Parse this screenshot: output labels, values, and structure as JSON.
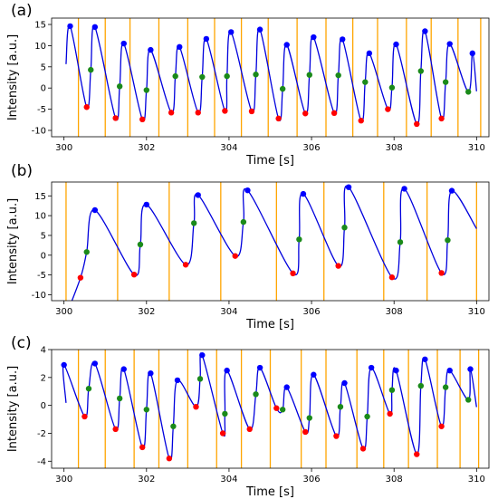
{
  "colors": {
    "signal": "#0000dd",
    "vertical_lines": "#ffa500",
    "peak_marker": "#0000ff",
    "mid_marker": "#1a8a1a",
    "trough_marker": "#ff0000"
  },
  "chart_data": [
    {
      "panel_label": "(a)",
      "type": "line",
      "xlabel": "Time [s]",
      "ylabel": "Intensity [a.u.]",
      "xlim": [
        299.7,
        310.3
      ],
      "ylim": [
        -11.5,
        16.5
      ],
      "x_ticks": [
        300,
        302,
        304,
        306,
        308,
        310
      ],
      "y_ticks": [
        -10,
        -5,
        0,
        5,
        10,
        15
      ],
      "x_tick_labels": [
        "300",
        "302",
        "304",
        "306",
        "308",
        "310"
      ],
      "y_tick_labels": [
        "-10",
        "-5",
        "0",
        "5",
        "10",
        "15"
      ],
      "vertical_lines_x": [
        300.35,
        301.0,
        301.6,
        302.3,
        303.0,
        303.65,
        304.3,
        304.95,
        305.65,
        306.35,
        307.0,
        307.6,
        308.3,
        308.9,
        309.55,
        310.1
      ],
      "peak_points": [
        [
          300.15,
          14.6
        ],
        [
          300.75,
          14.4
        ],
        [
          301.45,
          10.5
        ],
        [
          302.1,
          9.0
        ],
        [
          302.8,
          9.7
        ],
        [
          303.45,
          11.6
        ],
        [
          304.05,
          13.2
        ],
        [
          304.75,
          13.8
        ],
        [
          305.4,
          10.2
        ],
        [
          306.05,
          12.0
        ],
        [
          306.75,
          11.5
        ],
        [
          307.4,
          8.2
        ],
        [
          308.05,
          10.3
        ],
        [
          308.75,
          13.4
        ],
        [
          309.35,
          10.4
        ],
        [
          309.9,
          8.2
        ]
      ],
      "mid_points": [
        [
          300.65,
          4.3
        ],
        [
          301.35,
          0.4
        ],
        [
          302.0,
          -0.5
        ],
        [
          302.7,
          2.8
        ],
        [
          303.35,
          2.6
        ],
        [
          303.95,
          2.8
        ],
        [
          304.65,
          3.2
        ],
        [
          305.3,
          -0.2
        ],
        [
          305.95,
          3.1
        ],
        [
          306.65,
          3.0
        ],
        [
          307.3,
          1.4
        ],
        [
          307.95,
          0.1
        ],
        [
          308.65,
          4.0
        ],
        [
          309.25,
          1.4
        ],
        [
          309.8,
          -0.9
        ]
      ],
      "trough_points": [
        [
          300.55,
          -4.5
        ],
        [
          301.25,
          -7.1
        ],
        [
          301.9,
          -7.4
        ],
        [
          302.6,
          -5.8
        ],
        [
          303.25,
          -5.8
        ],
        [
          303.9,
          -5.4
        ],
        [
          304.55,
          -5.5
        ],
        [
          305.2,
          -7.2
        ],
        [
          305.85,
          -6.0
        ],
        [
          306.55,
          -5.9
        ],
        [
          307.2,
          -7.7
        ],
        [
          307.85,
          -5.0
        ],
        [
          308.55,
          -8.5
        ],
        [
          309.15,
          -7.2
        ]
      ]
    },
    {
      "panel_label": "(b)",
      "type": "line",
      "xlabel": "Time [s]",
      "ylabel": "Intensity [a.u.]",
      "xlim": [
        299.7,
        310.3
      ],
      "ylim": [
        -11.5,
        18.5
      ],
      "x_ticks": [
        300,
        302,
        304,
        306,
        308,
        310
      ],
      "y_ticks": [
        -10,
        -5,
        0,
        5,
        10,
        15
      ],
      "x_tick_labels": [
        "300",
        "302",
        "304",
        "306",
        "308",
        "310"
      ],
      "y_tick_labels": [
        "-10",
        "-5",
        "0",
        "5",
        "10",
        "15"
      ],
      "vertical_lines_x": [
        300.05,
        301.3,
        302.55,
        303.8,
        305.15,
        306.3,
        307.75,
        308.8,
        310.0
      ],
      "peak_points": [
        [
          300.75,
          11.4
        ],
        [
          302.0,
          12.8
        ],
        [
          303.25,
          15.2
        ],
        [
          304.45,
          16.4
        ],
        [
          305.8,
          15.5
        ],
        [
          306.9,
          17.2
        ],
        [
          308.25,
          16.8
        ],
        [
          309.4,
          16.3
        ]
      ],
      "mid_points": [
        [
          300.55,
          0.8
        ],
        [
          301.85,
          2.7
        ],
        [
          303.15,
          8.1
        ],
        [
          304.35,
          8.4
        ],
        [
          305.7,
          4.0
        ],
        [
          306.8,
          7.0
        ],
        [
          308.15,
          3.3
        ],
        [
          309.3,
          3.8
        ]
      ],
      "trough_points": [
        [
          300.4,
          -5.7
        ],
        [
          301.7,
          -4.9
        ],
        [
          302.95,
          -2.4
        ],
        [
          304.15,
          -0.2
        ],
        [
          305.55,
          -4.6
        ],
        [
          306.65,
          -2.7
        ],
        [
          307.95,
          -5.6
        ],
        [
          309.15,
          -4.5
        ]
      ]
    },
    {
      "panel_label": "(c)",
      "type": "line",
      "xlabel": "Time [s]",
      "ylabel": "Intensity [a.u.]",
      "xlim": [
        299.7,
        310.3
      ],
      "ylim": [
        -4.5,
        4.0
      ],
      "x_ticks": [
        300,
        302,
        304,
        306,
        308,
        310
      ],
      "y_ticks": [
        -4,
        -2,
        0,
        2,
        4
      ],
      "x_tick_labels": [
        "300",
        "302",
        "304",
        "306",
        "308",
        "310"
      ],
      "y_tick_labels": [
        "-4",
        "-2",
        "0",
        "2",
        "4"
      ],
      "vertical_lines_x": [
        300.35,
        301.0,
        301.7,
        302.3,
        303.0,
        303.7,
        304.3,
        305.0,
        305.75,
        306.35,
        307.1,
        307.75,
        308.35,
        309.05,
        309.6,
        310.05
      ],
      "peak_points": [
        [
          300.0,
          2.9
        ],
        [
          300.75,
          3.0
        ],
        [
          301.45,
          2.6
        ],
        [
          302.1,
          2.3
        ],
        [
          302.75,
          1.8
        ],
        [
          303.35,
          3.6
        ],
        [
          303.95,
          2.5
        ],
        [
          304.75,
          2.7
        ],
        [
          305.4,
          1.3
        ],
        [
          306.05,
          2.2
        ],
        [
          306.8,
          1.6
        ],
        [
          307.45,
          2.7
        ],
        [
          308.05,
          2.5
        ],
        [
          308.75,
          3.3
        ],
        [
          309.35,
          2.5
        ],
        [
          309.85,
          2.6
        ]
      ],
      "mid_points": [
        [
          300.6,
          1.2
        ],
        [
          301.35,
          0.5
        ],
        [
          302.0,
          -0.3
        ],
        [
          302.65,
          -1.5
        ],
        [
          303.3,
          1.9
        ],
        [
          303.9,
          -0.6
        ],
        [
          304.65,
          0.8
        ],
        [
          305.3,
          -0.3
        ],
        [
          305.95,
          -0.9
        ],
        [
          306.7,
          -0.1
        ],
        [
          307.35,
          -0.8
        ],
        [
          307.95,
          1.1
        ],
        [
          308.65,
          1.4
        ],
        [
          309.25,
          1.3
        ],
        [
          309.8,
          0.4
        ]
      ],
      "trough_points": [
        [
          300.5,
          -0.8
        ],
        [
          301.25,
          -1.7
        ],
        [
          301.9,
          -3.0
        ],
        [
          302.55,
          -3.8
        ],
        [
          303.2,
          -0.1
        ],
        [
          303.85,
          -2.0
        ],
        [
          304.5,
          -1.7
        ],
        [
          305.15,
          -0.2
        ],
        [
          305.85,
          -1.9
        ],
        [
          306.6,
          -2.2
        ],
        [
          307.25,
          -3.1
        ],
        [
          307.9,
          -0.6
        ],
        [
          308.55,
          -3.5
        ],
        [
          309.15,
          -1.5
        ]
      ]
    }
  ]
}
